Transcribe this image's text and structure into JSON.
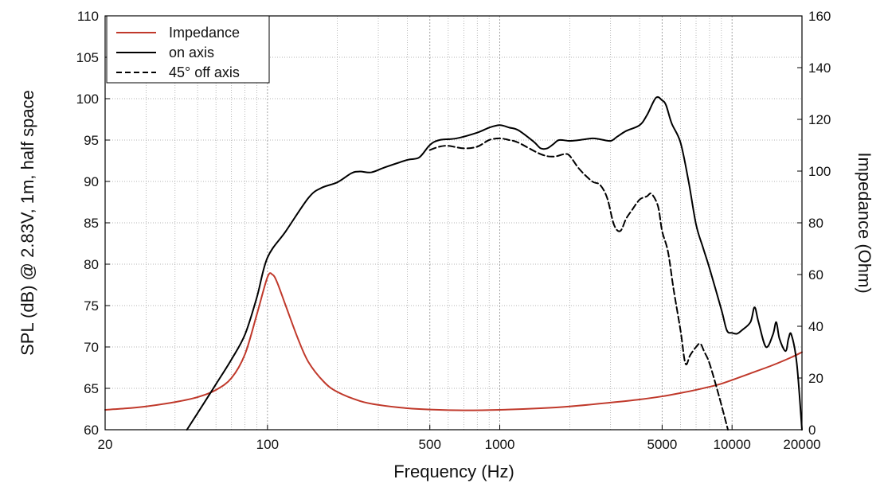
{
  "chart_data": {
    "type": "line",
    "title": "",
    "xlabel": "Frequency (Hz)",
    "ylabel_left": "SPL (dB) @ 2.83V, 1m, half space",
    "ylabel_right": "Impedance (Ohm)",
    "x_scale": "log",
    "xlim": [
      20,
      20000
    ],
    "ylim_left": [
      60,
      110
    ],
    "ylim_right": [
      0,
      160
    ],
    "x_ticks": [
      20,
      100,
      500,
      1000,
      5000,
      10000,
      20000
    ],
    "x_tick_labels": [
      "20",
      "100",
      "500",
      "1000",
      "5000",
      "10000",
      "20000"
    ],
    "y_left_ticks": [
      60,
      65,
      70,
      75,
      80,
      85,
      90,
      95,
      100,
      105,
      110
    ],
    "y_right_ticks": [
      0,
      20,
      40,
      60,
      80,
      100,
      120,
      140,
      160
    ],
    "grid": true,
    "legend_position": "top-left",
    "colors": {
      "impedance": "#c0392b",
      "spl": "#000000",
      "grid": "#9a9a9a"
    },
    "series": [
      {
        "name": "Impedance",
        "axis": "right",
        "style": "solid",
        "color": "#c0392b",
        "points": [
          [
            20,
            7.7
          ],
          [
            25,
            8.3
          ],
          [
            30,
            9.0
          ],
          [
            40,
            10.7
          ],
          [
            50,
            12.6
          ],
          [
            60,
            15.4
          ],
          [
            70,
            20.0
          ],
          [
            80,
            29.2
          ],
          [
            90,
            44.6
          ],
          [
            100,
            59.0
          ],
          [
            105,
            60.0
          ],
          [
            110,
            57.0
          ],
          [
            120,
            47.8
          ],
          [
            135,
            35.4
          ],
          [
            150,
            26.2
          ],
          [
            175,
            18.5
          ],
          [
            200,
            14.6
          ],
          [
            250,
            11.1
          ],
          [
            300,
            9.6
          ],
          [
            400,
            8.3
          ],
          [
            500,
            7.8
          ],
          [
            700,
            7.5
          ],
          [
            1000,
            7.7
          ],
          [
            1500,
            8.3
          ],
          [
            2000,
            9.0
          ],
          [
            3000,
            10.5
          ],
          [
            4000,
            11.7
          ],
          [
            5000,
            12.9
          ],
          [
            6000,
            14.2
          ],
          [
            7000,
            15.4
          ],
          [
            8000,
            16.6
          ],
          [
            9000,
            17.8
          ],
          [
            10000,
            19.2
          ],
          [
            12000,
            21.8
          ],
          [
            15000,
            25.0
          ],
          [
            18000,
            28.0
          ],
          [
            20000,
            30.0
          ]
        ]
      },
      {
        "name": "on axis",
        "axis": "left",
        "style": "solid",
        "color": "#000000",
        "points": [
          [
            45,
            60
          ],
          [
            50,
            62
          ],
          [
            60,
            65.5
          ],
          [
            70,
            68.5
          ],
          [
            80,
            71.5
          ],
          [
            90,
            76
          ],
          [
            100,
            80.8
          ],
          [
            120,
            84
          ],
          [
            150,
            88
          ],
          [
            170,
            89.2
          ],
          [
            200,
            89.9
          ],
          [
            230,
            91
          ],
          [
            250,
            91.2
          ],
          [
            280,
            91.1
          ],
          [
            320,
            91.7
          ],
          [
            400,
            92.6
          ],
          [
            450,
            92.9
          ],
          [
            500,
            94.4
          ],
          [
            550,
            95
          ],
          [
            650,
            95.2
          ],
          [
            800,
            95.9
          ],
          [
            900,
            96.5
          ],
          [
            1000,
            96.8
          ],
          [
            1100,
            96.5
          ],
          [
            1200,
            96.2
          ],
          [
            1400,
            94.8
          ],
          [
            1500,
            94
          ],
          [
            1600,
            94
          ],
          [
            1700,
            94.5
          ],
          [
            1800,
            95
          ],
          [
            2000,
            94.9
          ],
          [
            2200,
            95
          ],
          [
            2500,
            95.2
          ],
          [
            2700,
            95.1
          ],
          [
            3000,
            94.9
          ],
          [
            3200,
            95.4
          ],
          [
            3500,
            96.1
          ],
          [
            4000,
            96.8
          ],
          [
            4300,
            98
          ],
          [
            4700,
            100.1
          ],
          [
            5000,
            99.8
          ],
          [
            5200,
            99.2
          ],
          [
            5500,
            97
          ],
          [
            6000,
            94.7
          ],
          [
            6500,
            90
          ],
          [
            7000,
            84.8
          ],
          [
            7500,
            82
          ],
          [
            8000,
            79.5
          ],
          [
            9000,
            74.5
          ],
          [
            9500,
            72
          ],
          [
            10000,
            71.7
          ],
          [
            10500,
            71.6
          ],
          [
            11000,
            72
          ],
          [
            12000,
            73
          ],
          [
            12500,
            74.8
          ],
          [
            13000,
            73
          ],
          [
            14000,
            70
          ],
          [
            15000,
            71.5
          ],
          [
            15500,
            73
          ],
          [
            16000,
            71
          ],
          [
            17000,
            69.5
          ],
          [
            17500,
            71
          ],
          [
            18000,
            71.5
          ],
          [
            19000,
            68
          ],
          [
            20000,
            60
          ]
        ]
      },
      {
        "name": "45° off axis",
        "axis": "left",
        "style": "dashed",
        "color": "#000000",
        "points": [
          [
            500,
            93.8
          ],
          [
            550,
            94.2
          ],
          [
            600,
            94.3
          ],
          [
            700,
            94
          ],
          [
            800,
            94.2
          ],
          [
            900,
            95
          ],
          [
            1000,
            95.2
          ],
          [
            1100,
            95
          ],
          [
            1200,
            94.7
          ],
          [
            1500,
            93.3
          ],
          [
            1700,
            93
          ],
          [
            1900,
            93.3
          ],
          [
            2000,
            93.1
          ],
          [
            2200,
            91.5
          ],
          [
            2500,
            90
          ],
          [
            2700,
            89.6
          ],
          [
            2900,
            88
          ],
          [
            3100,
            84.8
          ],
          [
            3300,
            84
          ],
          [
            3500,
            85.5
          ],
          [
            3700,
            86.5
          ],
          [
            4000,
            87.8
          ],
          [
            4300,
            88.2
          ],
          [
            4500,
            88.5
          ],
          [
            4800,
            87
          ],
          [
            5000,
            84
          ],
          [
            5300,
            81.5
          ],
          [
            5600,
            77
          ],
          [
            6000,
            72
          ],
          [
            6300,
            68
          ],
          [
            6600,
            69
          ],
          [
            7000,
            70
          ],
          [
            7300,
            70.4
          ],
          [
            7600,
            69.4
          ],
          [
            8000,
            68
          ],
          [
            8800,
            64
          ],
          [
            9600,
            60
          ]
        ]
      }
    ],
    "legend": [
      "Impedance",
      "on axis",
      "45° off axis"
    ]
  }
}
